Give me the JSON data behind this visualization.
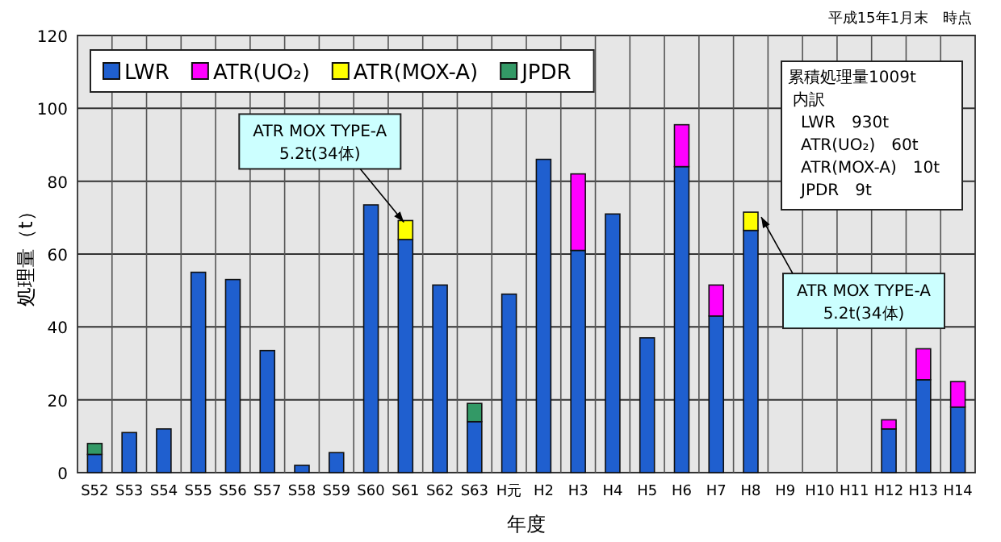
{
  "chart_data": {
    "type": "bar",
    "stacked": true,
    "xlabel": "年度",
    "ylabel": "処理量（t）",
    "categories": [
      "S52",
      "S53",
      "S54",
      "S55",
      "S56",
      "S57",
      "S58",
      "S59",
      "S60",
      "S61",
      "S62",
      "S63",
      "H元",
      "H2",
      "H3",
      "H4",
      "H5",
      "H6",
      "H7",
      "H8",
      "H9",
      "H10",
      "H11",
      "H12",
      "H13",
      "H14"
    ],
    "series": [
      {
        "name": "LWR",
        "color": "#1f5fcf",
        "values": [
          5,
          11,
          12,
          55,
          53,
          33.5,
          2,
          5.5,
          73.5,
          64,
          51.5,
          14,
          49,
          86,
          61,
          71,
          37,
          84,
          43,
          66.5,
          null,
          null,
          null,
          12,
          25.5,
          18
        ]
      },
      {
        "name": "ATR(UO₂)",
        "color": "#ff00ff",
        "values": [
          null,
          null,
          null,
          null,
          null,
          null,
          null,
          null,
          null,
          null,
          null,
          null,
          null,
          null,
          21,
          null,
          null,
          11.5,
          8.5,
          null,
          null,
          null,
          null,
          2.5,
          8.5,
          7
        ]
      },
      {
        "name": "ATR(MOX-A)",
        "color": "#ffff00",
        "values": [
          null,
          null,
          null,
          null,
          null,
          null,
          null,
          null,
          null,
          5.2,
          null,
          null,
          null,
          null,
          null,
          null,
          null,
          null,
          null,
          5,
          null,
          null,
          null,
          null,
          null,
          null
        ]
      },
      {
        "name": "JPDR",
        "color": "#339966",
        "values": [
          3,
          null,
          null,
          null,
          null,
          null,
          null,
          null,
          null,
          null,
          null,
          5,
          null,
          null,
          null,
          null,
          null,
          null,
          null,
          null,
          null,
          null,
          null,
          null,
          null,
          null
        ]
      }
    ],
    "ylim": [
      0,
      120
    ],
    "yticks": [
      0,
      20,
      40,
      60,
      80,
      100,
      120
    ],
    "grid": true,
    "legend": "top left",
    "annotations": [
      "平成15年1月末　時点",
      "累積処理量1009t",
      "内訳",
      "LWR　930t",
      "ATR(UO₂)　60t",
      "ATR(MOX-A)　10t",
      "JPDR　9t",
      {
        "text": "ATR MOX TYPE-A\n5.2t(34体)",
        "x": "S61",
        "y": 69.2
      },
      {
        "text": "ATR MOX TYPE-A\n5.2t(34体)",
        "x": "H8",
        "y": 71.5
      }
    ]
  }
}
